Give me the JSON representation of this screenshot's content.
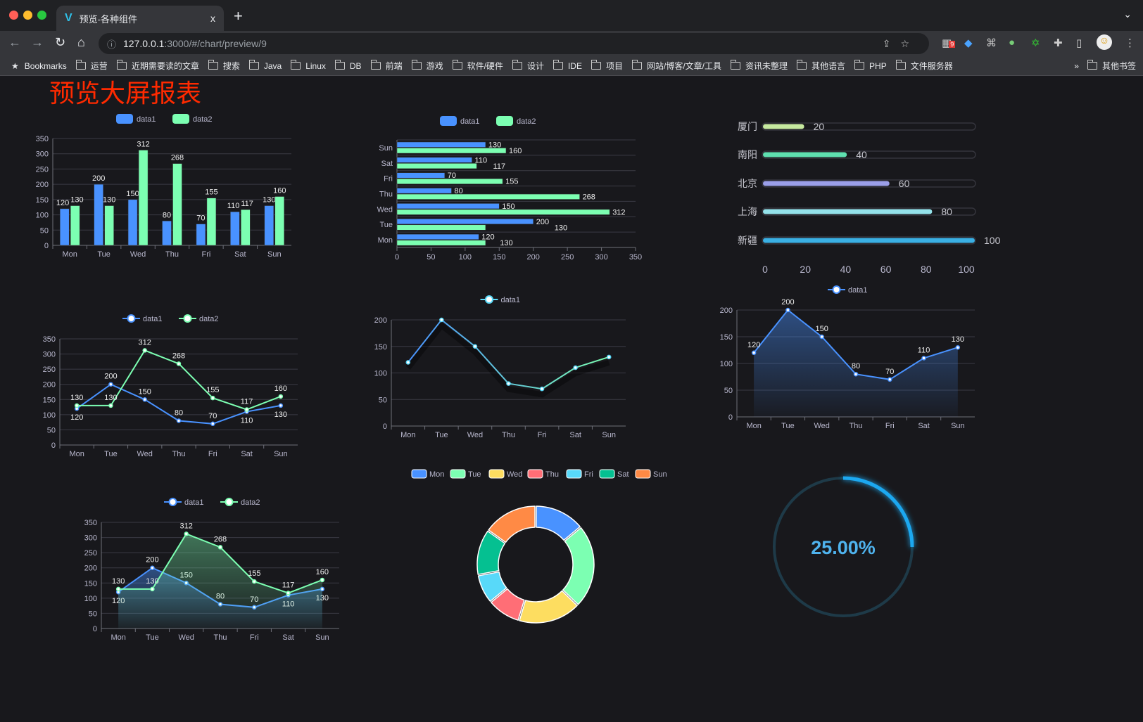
{
  "browser": {
    "tab_title": "预览-各种组件",
    "tab_close": "x",
    "new_tab": "+",
    "tab_menu": "⌄",
    "url_host": "127.0.0.1",
    "url_rest": ":3000/#/chart/preview/9",
    "extension_badge": "9",
    "bookmarks_label": "Bookmarks",
    "bookmarks": [
      "运营",
      "近期需要读的文章",
      "搜索",
      "Java",
      "Linux",
      "DB",
      "前端",
      "游戏",
      "软件/硬件",
      "设计",
      "IDE",
      "项目",
      "网站/博客/文章/工具",
      "资讯未整理",
      "其他语言",
      "PHP",
      "文件服务器"
    ],
    "more": "»",
    "other_bookmarks": "其他书签"
  },
  "page": {
    "title": "预览大屏报表",
    "title_color": "#ff2a00"
  },
  "chart_data": [
    {
      "type": "bar",
      "legend": [
        "data1",
        "data2"
      ],
      "categories": [
        "Mon",
        "Tue",
        "Wed",
        "Thu",
        "Fri",
        "Sat",
        "Sun"
      ],
      "series": [
        {
          "name": "data1",
          "values": [
            120,
            200,
            150,
            80,
            70,
            110,
            130
          ],
          "color": "#4992ff"
        },
        {
          "name": "data2",
          "values": [
            130,
            130,
            312,
            268,
            155,
            117,
            160
          ],
          "color": "#7cffb2"
        }
      ],
      "ylim": [
        0,
        350
      ],
      "yticks": [
        "0",
        "50",
        "100",
        "150",
        "200",
        "250",
        "300",
        "350"
      ],
      "grid": true,
      "data_labels": true,
      "legend_position": "top"
    },
    {
      "type": "bar",
      "orientation": "horizontal",
      "legend": [
        "data1",
        "data2"
      ],
      "categories": [
        "Mon",
        "Tue",
        "Wed",
        "Thu",
        "Fri",
        "Sat",
        "Sun"
      ],
      "series": [
        {
          "name": "data1",
          "values": [
            120,
            200,
            150,
            80,
            70,
            110,
            130
          ],
          "color": "#4992ff"
        },
        {
          "name": "data2",
          "values": [
            130,
            130,
            312,
            268,
            155,
            117,
            160
          ],
          "color": "#7cffb2"
        }
      ],
      "xlim": [
        0,
        350
      ],
      "xticks": [
        "0",
        "50",
        "100",
        "150",
        "200",
        "250",
        "300",
        "350"
      ],
      "grid": true,
      "data_labels": true,
      "legend_position": "top"
    },
    {
      "type": "bar",
      "orientation": "horizontal",
      "style": "progress",
      "categories": [
        "厦门",
        "南阳",
        "北京",
        "上海",
        "新疆"
      ],
      "values": [
        20,
        40,
        60,
        80,
        100
      ],
      "colors": [
        "#c6e99f",
        "#5fe0b0",
        "#9a9ee8",
        "#94e2ea",
        "#3ab0e4"
      ],
      "xlim": [
        0,
        100
      ],
      "xticks": [
        "0",
        "20",
        "40",
        "60",
        "80",
        "100"
      ],
      "data_labels": true
    },
    {
      "type": "line",
      "legend": [
        "data1",
        "data2"
      ],
      "categories": [
        "Mon",
        "Tue",
        "Wed",
        "Thu",
        "Fri",
        "Sat",
        "Sun"
      ],
      "series": [
        {
          "name": "data1",
          "values": [
            120,
            200,
            150,
            80,
            70,
            110,
            130
          ],
          "color": "#4992ff"
        },
        {
          "name": "data2",
          "values": [
            130,
            130,
            312,
            268,
            155,
            117,
            160
          ],
          "color": "#7cffb2"
        }
      ],
      "ylim": [
        0,
        350
      ],
      "yticks": [
        "0",
        "50",
        "100",
        "150",
        "200",
        "250",
        "300",
        "350"
      ],
      "grid": true,
      "data_labels": true,
      "legend_position": "top"
    },
    {
      "type": "line",
      "legend": [
        "data1"
      ],
      "categories": [
        "Mon",
        "Tue",
        "Wed",
        "Thu",
        "Fri",
        "Sat",
        "Sun"
      ],
      "series": [
        {
          "name": "data1",
          "values": [
            120,
            200,
            150,
            80,
            70,
            110,
            130
          ],
          "color": "#58d9f9"
        }
      ],
      "ylim": [
        0,
        200
      ],
      "yticks": [
        "0",
        "50",
        "100",
        "150",
        "200"
      ],
      "grid": true,
      "data_labels": false,
      "legend_position": "top"
    },
    {
      "type": "area",
      "legend": [
        "data1"
      ],
      "categories": [
        "Mon",
        "Tue",
        "Wed",
        "Thu",
        "Fri",
        "Sat",
        "Sun"
      ],
      "series": [
        {
          "name": "data1",
          "values": [
            120,
            200,
            150,
            80,
            70,
            110,
            130
          ],
          "color": "#4992ff"
        }
      ],
      "ylim": [
        0,
        200
      ],
      "yticks": [
        "0",
        "50",
        "100",
        "150",
        "200"
      ],
      "grid": true,
      "data_labels": true,
      "legend_position": "top"
    },
    {
      "type": "area",
      "legend": [
        "data1",
        "data2"
      ],
      "categories": [
        "Mon",
        "Tue",
        "Wed",
        "Thu",
        "Fri",
        "Sat",
        "Sun"
      ],
      "series": [
        {
          "name": "data1",
          "values": [
            120,
            200,
            150,
            80,
            70,
            110,
            130
          ],
          "color": "#4992ff"
        },
        {
          "name": "data2",
          "values": [
            130,
            130,
            312,
            268,
            155,
            117,
            160
          ],
          "color": "#7cffb2"
        }
      ],
      "ylim": [
        0,
        350
      ],
      "yticks": [
        "0",
        "50",
        "100",
        "150",
        "200",
        "250",
        "300",
        "350"
      ],
      "grid": true,
      "data_labels": true,
      "legend_position": "top"
    },
    {
      "type": "pie",
      "style": "donut",
      "categories": [
        "Mon",
        "Tue",
        "Wed",
        "Thu",
        "Fri",
        "Sat",
        "Sun"
      ],
      "values": [
        120,
        200,
        150,
        80,
        70,
        110,
        130
      ],
      "colors": [
        "#4992ff",
        "#7cffb2",
        "#fddd60",
        "#ff6e76",
        "#58d9f9",
        "#05c091",
        "#ff8a45"
      ],
      "legend_position": "top"
    },
    {
      "type": "gauge",
      "value": 25,
      "max": 100,
      "label": "25.00%",
      "color": "#1da8f0",
      "track_color": "#1e3a48"
    }
  ]
}
